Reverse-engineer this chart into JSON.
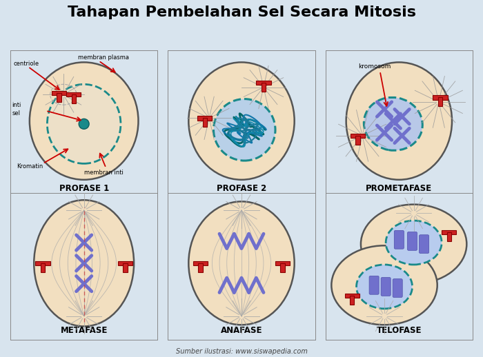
{
  "title": "Tahapan Pembelahan Sel Secara Mitosis",
  "title_fontsize": 16,
  "background_color": "#d8e4ee",
  "cell_fill": "#f2dfc0",
  "cell_edge": "#555555",
  "nucleus_fill": "#c0d4e8",
  "nucleus_edge": "#1a8a8a",
  "dashed_color": "#1a8a8a",
  "spindle_color": "#aaaaaa",
  "chromosome_color": "#7070cc",
  "centriole_color": "#cc2222",
  "arrow_color": "#cc0000",
  "label_color": "#000000",
  "phase_labels": [
    "PROFASE 1",
    "PROFASE 2",
    "PROMETAFASE",
    "METAFASE",
    "ANAFASE",
    "TELOFASE"
  ],
  "source_text": "Sumber ilustrasi: www.siswapedia.com"
}
